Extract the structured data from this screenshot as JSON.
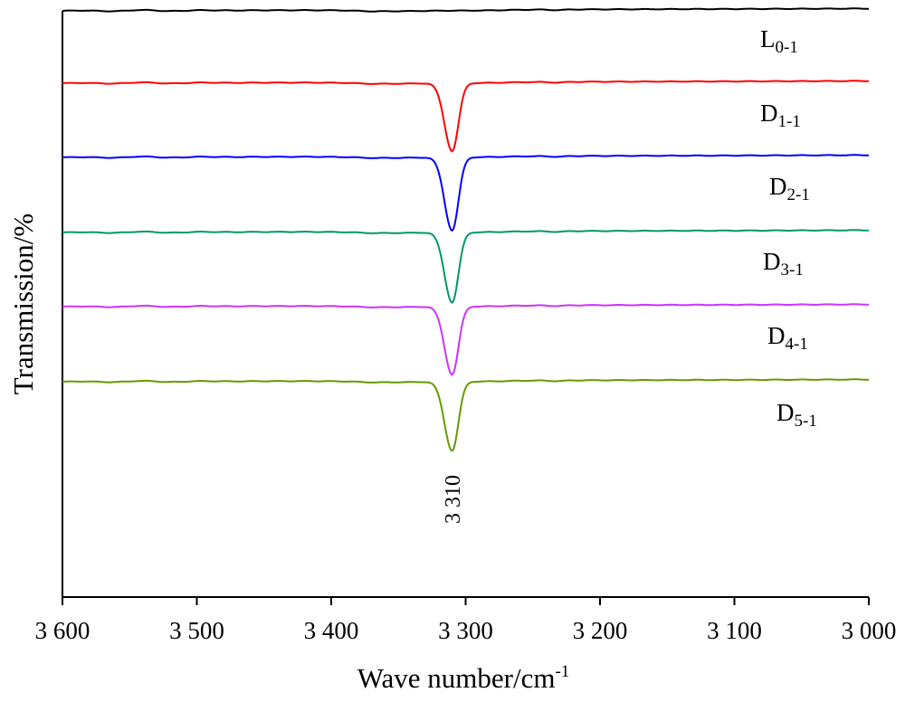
{
  "chart_data": {
    "type": "line",
    "xlabel": "Wave number/cm",
    "xlabel_superscript": "-1",
    "ylabel": "Transmission/%",
    "xlim": [
      3600,
      3000
    ],
    "x_reversed": true,
    "y_tick_labels": false,
    "grid": false,
    "legend": "inline labels at right of each curve",
    "x_ticks": [
      {
        "value": 3600,
        "label": "3 600"
      },
      {
        "value": 3500,
        "label": "3 500"
      },
      {
        "value": 3400,
        "label": "3 400"
      },
      {
        "value": 3300,
        "label": "3 300"
      },
      {
        "value": 3200,
        "label": "3 200"
      },
      {
        "value": 3100,
        "label": "3 100"
      },
      {
        "value": 3000,
        "label": "3 000"
      }
    ],
    "series": [
      {
        "name": "L0-1",
        "base": "L",
        "sub": "0-1",
        "color": "#000000",
        "peak_depth": 0.4,
        "curve_type": "flat"
      },
      {
        "name": "D1-1",
        "base": "D",
        "sub": "1-1",
        "color": "#ff0000",
        "peak_depth": 6.6,
        "curve_type": "peak"
      },
      {
        "name": "D2-1",
        "base": "D",
        "sub": "2-1",
        "color": "#0000ff",
        "peak_depth": 7.1,
        "curve_type": "peak"
      },
      {
        "name": "D3-1",
        "base": "D",
        "sub": "3-1",
        "color": "#009966",
        "peak_depth": 6.8,
        "curve_type": "peak"
      },
      {
        "name": "D4-1",
        "base": "D",
        "sub": "4-1",
        "color": "#cc33ff",
        "peak_depth": 6.6,
        "curve_type": "peak"
      },
      {
        "name": "D5-1",
        "base": "D",
        "sub": "5-1",
        "color": "#669900",
        "peak_depth": 6.7,
        "curve_type": "peak"
      }
    ],
    "peak_x": 3310,
    "annotation": "3 310"
  }
}
